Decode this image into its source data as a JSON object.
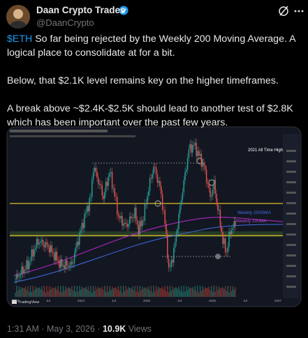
{
  "author": {
    "name": "Daan Crypto Trades",
    "handle": "@DaanCrypto"
  },
  "tweet": {
    "cashtag": "$ETH",
    "paragraphs": [
      "So far being rejected by the Weekly 200 Moving Average. A logical place to consolidate at for a bit.",
      "Below, that $2.1K level remains key on the higher timeframes.",
      "A break above ~$2.4K-$2.5K should lead to another test of $2.8K which has been important over the past few years."
    ]
  },
  "image": {
    "annotation": "2021 All Time High",
    "sma_label": "Weekly 200SMA",
    "ma_label": "Weekly 200MA",
    "brand": "TradingView",
    "x_axis": [
      "2023",
      "Jul",
      "2024",
      "Jul",
      "2025",
      "Jul",
      "2026",
      "Jul",
      "2027"
    ]
  },
  "footer": {
    "time": "1:31 AM",
    "separator": "·",
    "date": "May 3, 2026",
    "views": "10.9K",
    "views_label": "Views"
  }
}
